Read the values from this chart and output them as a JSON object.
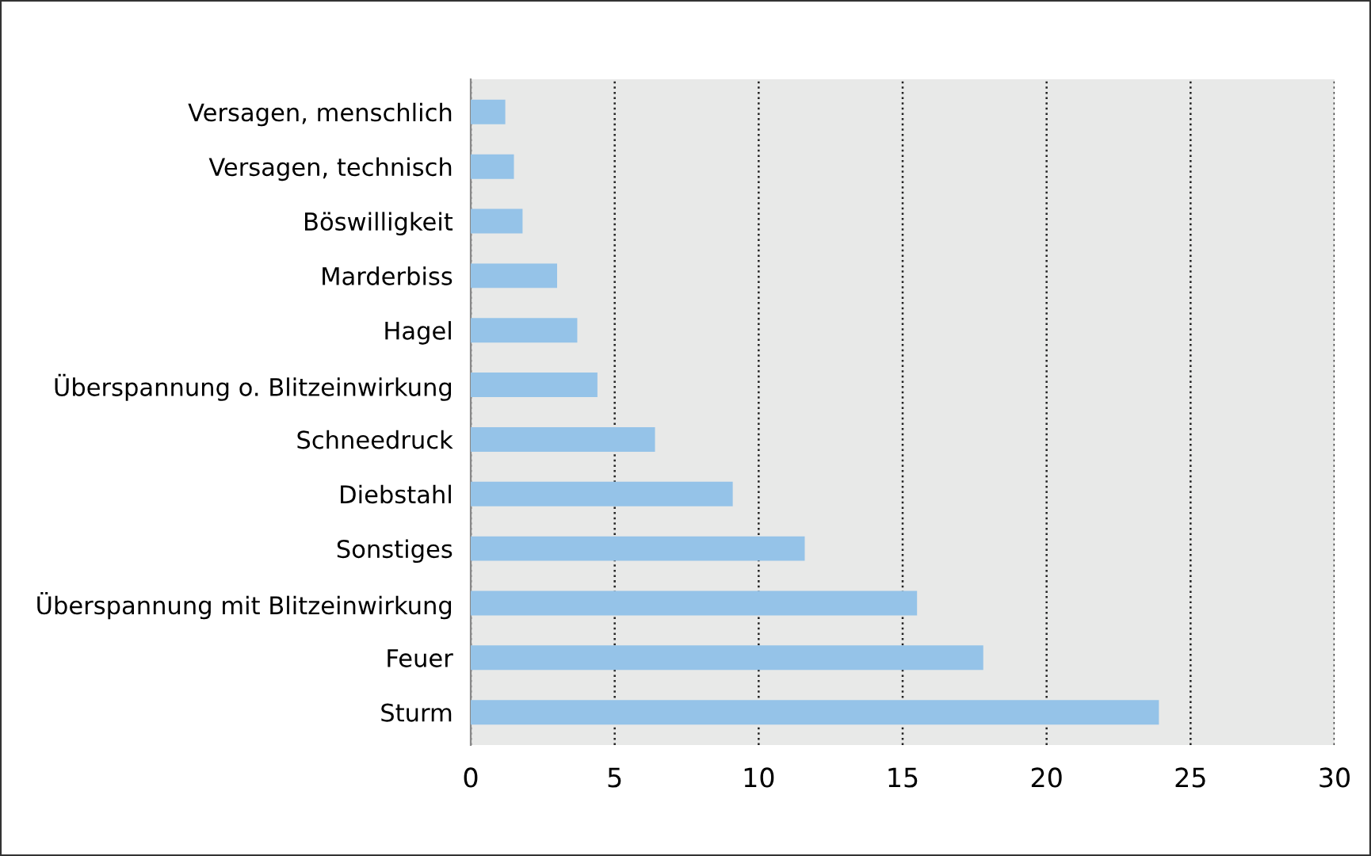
{
  "chart_data": {
    "type": "bar",
    "orientation": "horizontal",
    "categories": [
      "Versagen, menschlich",
      "Versagen, technisch",
      "Böswilligkeit",
      "Marderbiss",
      "Hagel",
      "Überspannung o. Blitzeinwirkung",
      "Schneedruck",
      "Diebstahl",
      "Sonstiges",
      "Überspannung mit Blitzeinwirkung",
      "Feuer",
      "Sturm"
    ],
    "values": [
      1.2,
      1.5,
      1.8,
      3.0,
      3.7,
      4.4,
      6.4,
      9.1,
      11.6,
      15.5,
      17.8,
      23.9
    ],
    "color": "#95c3e8",
    "xlim": [
      0,
      30
    ],
    "xticks": [
      0,
      5,
      10,
      15,
      20,
      25,
      30
    ],
    "grid": "x"
  }
}
